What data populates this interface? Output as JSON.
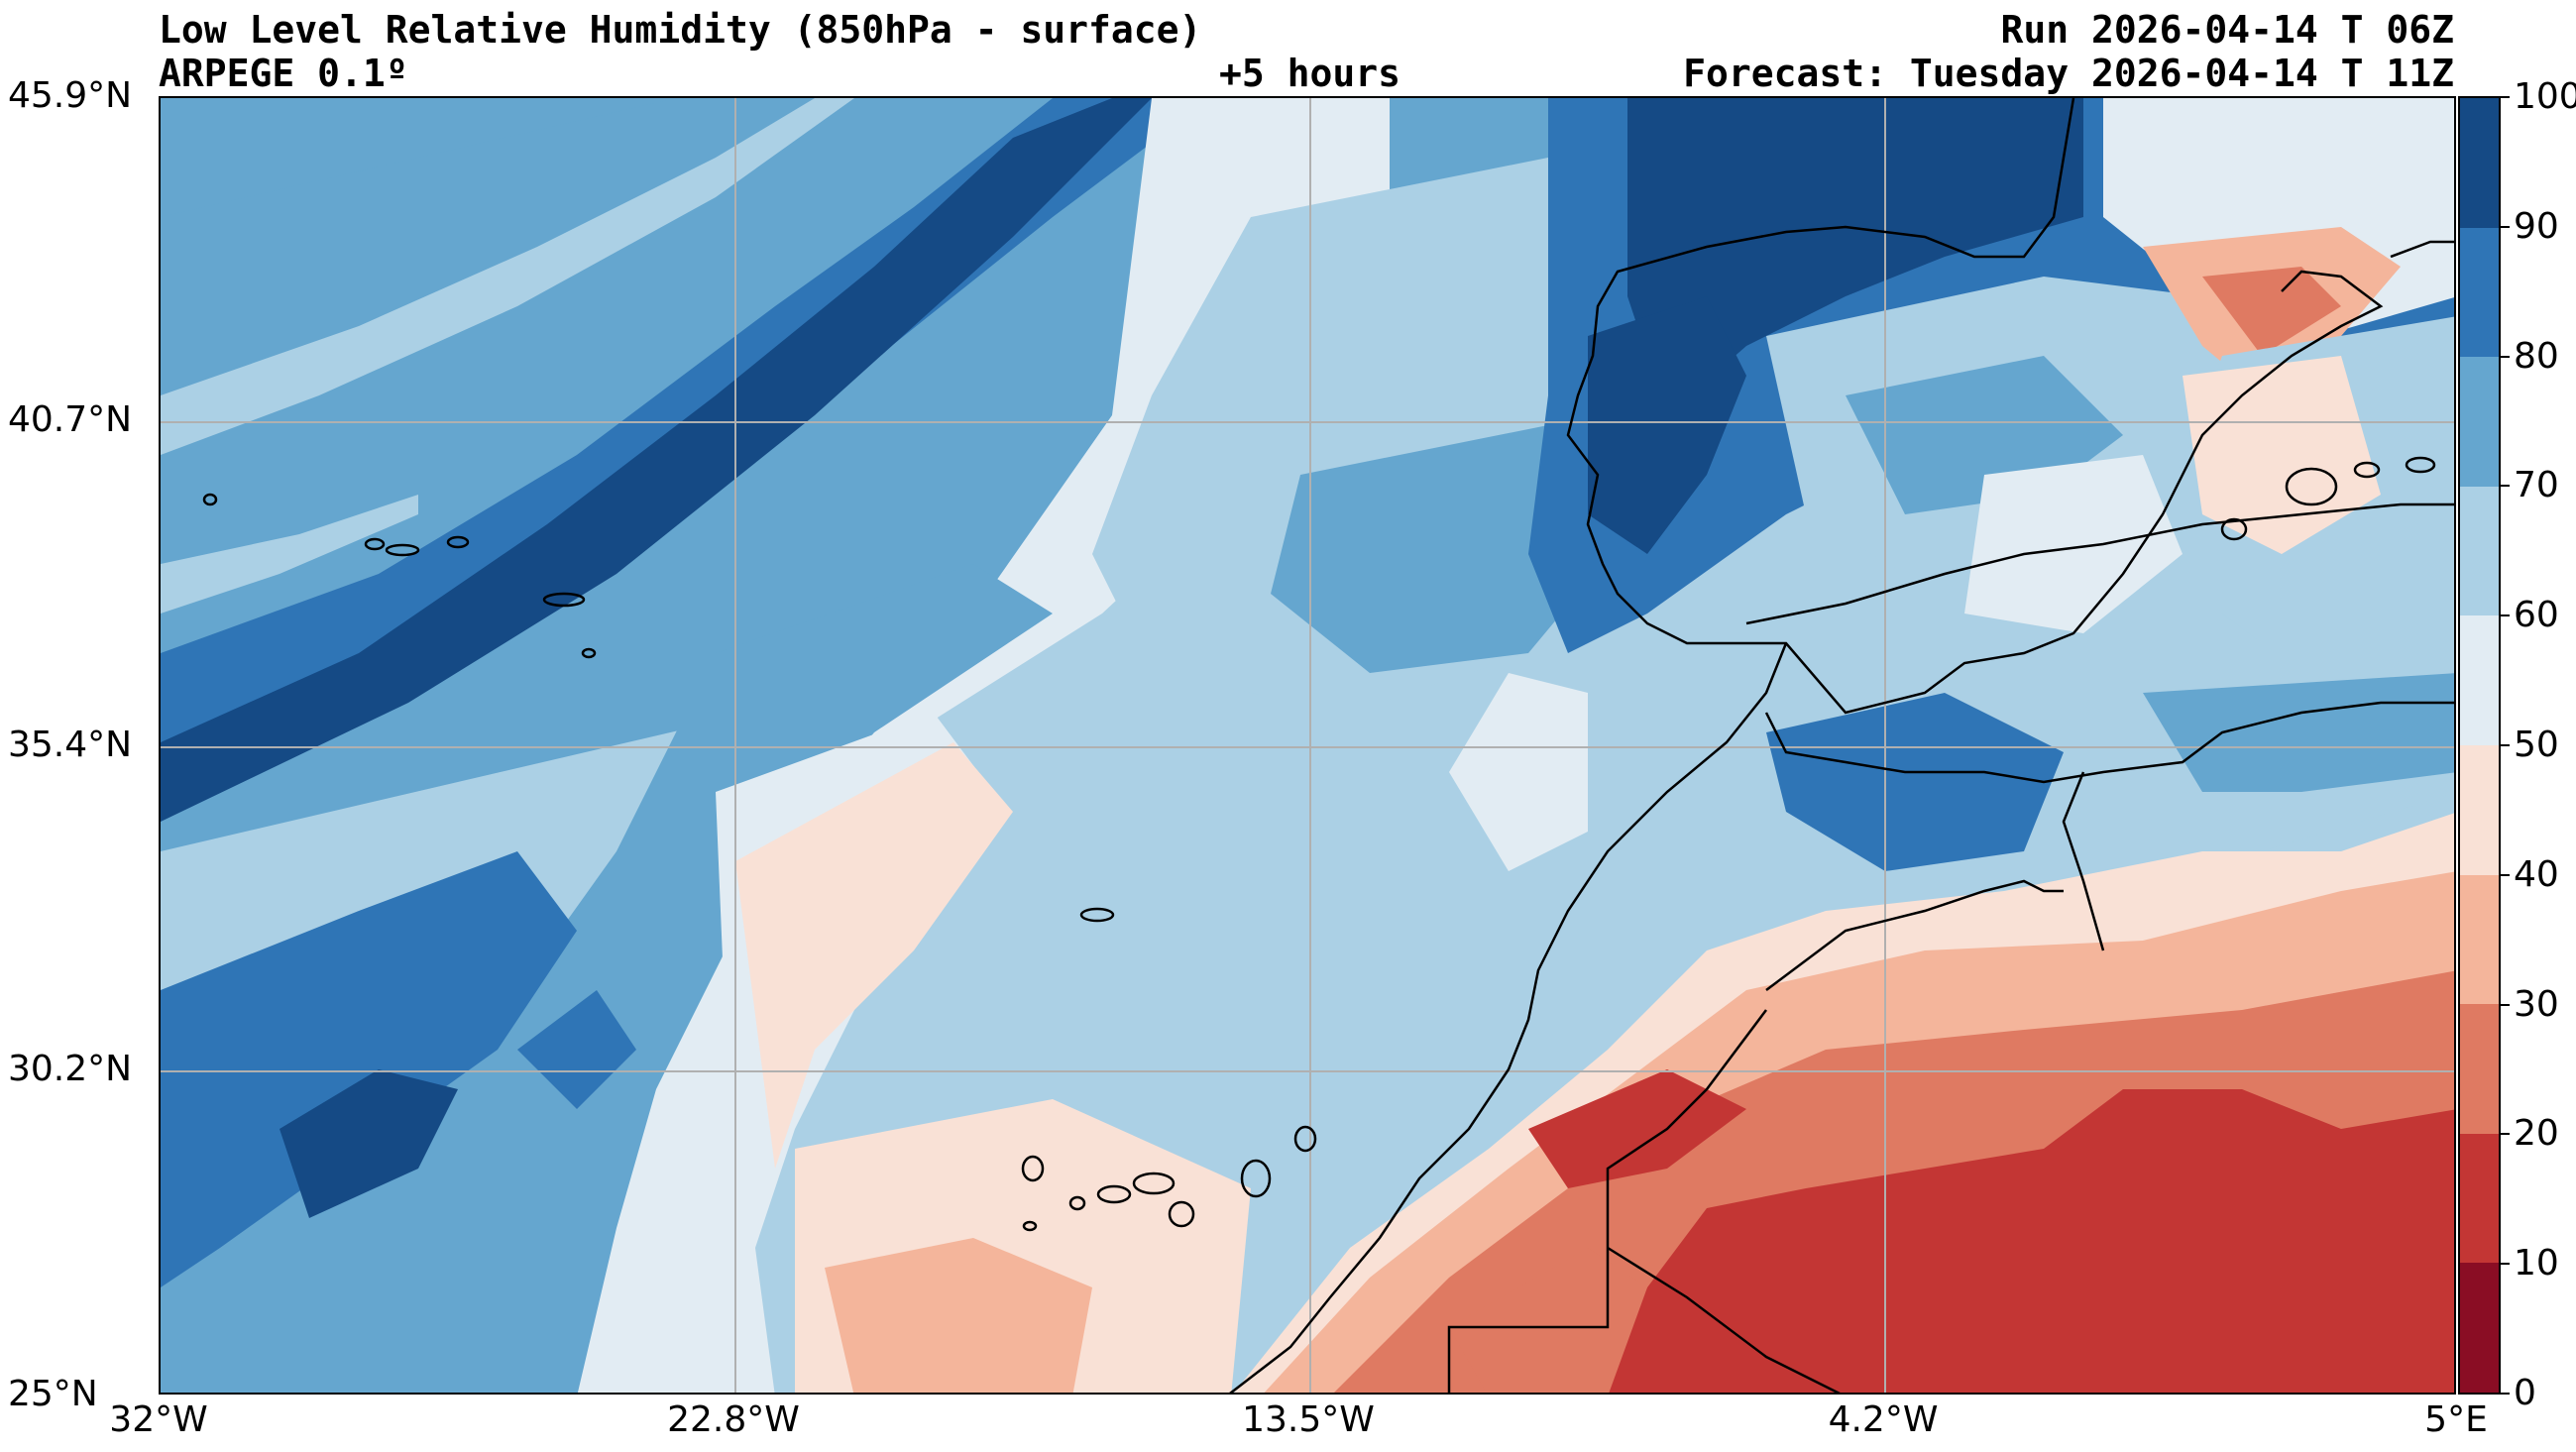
{
  "header": {
    "title_left": "Low Level Relative Humidity (850hPa - surface)",
    "subtitle_left": "ARPEGE 0.1º",
    "subtitle_center": "+5 hours",
    "title_right": "Run 2026-04-14 T 06Z",
    "subtitle_right": "Forecast: Tuesday 2026-04-14 T 11Z"
  },
  "map": {
    "lat_labels": [
      "45.9°N",
      "40.7°N",
      "35.4°N",
      "30.2°N",
      "25°N"
    ],
    "lon_labels": [
      "32°W",
      "22.8°W",
      "13.5°W",
      "4.2°W",
      "5°E"
    ],
    "grid": true
  },
  "colorbar": {
    "ticks": [
      "100",
      "90",
      "80",
      "70",
      "60",
      "50",
      "40",
      "30",
      "20",
      "10",
      "0"
    ],
    "colors": [
      "#154a85",
      "#2f75b6",
      "#65a6cf",
      "#abd0e5",
      "#e2ecf3",
      "#f9e1d6",
      "#f4b59b",
      "#df7a62",
      "#c33634",
      "#8a0d24"
    ]
  }
}
